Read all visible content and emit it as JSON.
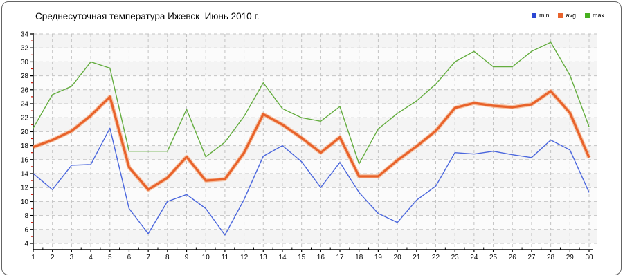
{
  "title": "Среднесуточная температура Ижевск  Июнь 2010 г.",
  "legend": {
    "items": [
      {
        "label": "min",
        "color": "#2b46d3"
      },
      {
        "label": "avg",
        "color": "#e8632c"
      },
      {
        "label": "max",
        "color": "#47b01f"
      }
    ]
  },
  "colors": {
    "grid": "#c3c3c3",
    "axis": "#000000",
    "minor_tick": "#cc1100",
    "band_a": "#f4f4f4",
    "band_b": "#fbfbfb"
  },
  "chart_data": {
    "type": "line",
    "title": "Среднесуточная температура Ижевск  Июнь 2010 г.",
    "xlabel": "",
    "ylabel": "",
    "x": [
      1,
      2,
      3,
      4,
      5,
      6,
      7,
      8,
      9,
      10,
      11,
      12,
      13,
      14,
      15,
      16,
      17,
      18,
      19,
      20,
      21,
      22,
      23,
      24,
      25,
      26,
      27,
      28,
      29,
      30
    ],
    "xlim": [
      1,
      30
    ],
    "ylim": [
      4,
      34
    ],
    "ytick_step": 2,
    "grid": true,
    "legend_position": "top-right",
    "series": [
      {
        "name": "min",
        "color": "#4a66dd",
        "width": 1.4,
        "values": [
          14,
          11.7,
          15.2,
          15.3,
          20.5,
          9,
          5.4,
          10,
          11,
          9,
          5.2,
          10.3,
          16.5,
          18,
          15.7,
          12,
          15.6,
          11.3,
          8.3,
          7,
          10.2,
          12.2,
          17,
          16.8,
          17.2,
          16.7,
          16.3,
          18.8,
          17.4,
          11.3
        ]
      },
      {
        "name": "avg",
        "color": "#e8622a",
        "halo": "#f5b088",
        "width": 3.2,
        "values": [
          17.8,
          18.8,
          20.1,
          22.3,
          25,
          14.9,
          11.7,
          13.4,
          16.4,
          13,
          13.2,
          17,
          22.5,
          21,
          19.1,
          17,
          19.2,
          13.6,
          13.6,
          15.9,
          17.9,
          20.1,
          23.4,
          24.1,
          23.7,
          23.5,
          23.9,
          25.8,
          22.7,
          16.3
        ]
      },
      {
        "name": "max",
        "color": "#64ad3f",
        "width": 1.4,
        "values": [
          20.5,
          25.3,
          26.5,
          30,
          29.1,
          17.2,
          17.2,
          17.2,
          23.2,
          16.4,
          18.5,
          22.2,
          27,
          23.3,
          22,
          21.5,
          23.6,
          15.4,
          20.4,
          22.6,
          24.4,
          26.8,
          30,
          31.5,
          29.3,
          29.3,
          31.5,
          32.8,
          28.1,
          20.7
        ]
      }
    ]
  }
}
